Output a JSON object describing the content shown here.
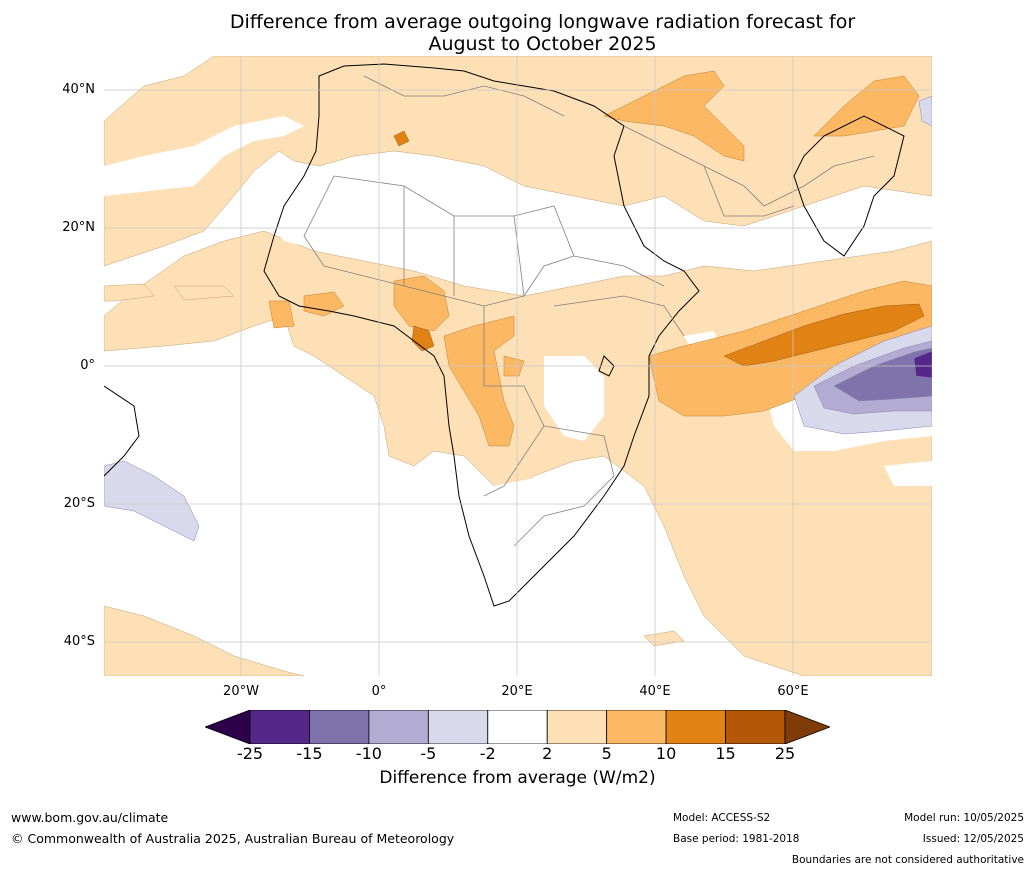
{
  "title": {
    "line1": "Difference from average outgoing longwave radiation forecast for",
    "line2": "August to October 2025"
  },
  "map": {
    "latitude_labels": [
      "40°N",
      "20°N",
      "0°",
      "20°S",
      "40°S"
    ],
    "longitude_labels": [
      "20°W",
      "0°",
      "20°E",
      "40°E",
      "60°E"
    ]
  },
  "colorbar": {
    "ticks": [
      "-25",
      "-15",
      "-10",
      "-5",
      "-2",
      "2",
      "5",
      "10",
      "15",
      "25"
    ],
    "colors": [
      "#2d004b",
      "#542788",
      "#8073ac",
      "#b2abd2",
      "#d8daeb",
      "#ffffff",
      "#fee0b6",
      "#fdb863",
      "#e08214",
      "#b35806",
      "#7f3b08"
    ],
    "label": "Difference from average (W/m2)"
  },
  "footer": {
    "website": "www.bom.gov.au/climate",
    "copyright": "© Commonwealth of Australia 2025, Australian Bureau of Meteorology",
    "model": "Model: ACCESS-S2",
    "base_period": "Base period: 1981-2018",
    "model_run": "Model run: 10/05/2025",
    "issued": "Issued: 12/05/2025",
    "disclaimer": "Boundaries are not considered authoritative"
  }
}
